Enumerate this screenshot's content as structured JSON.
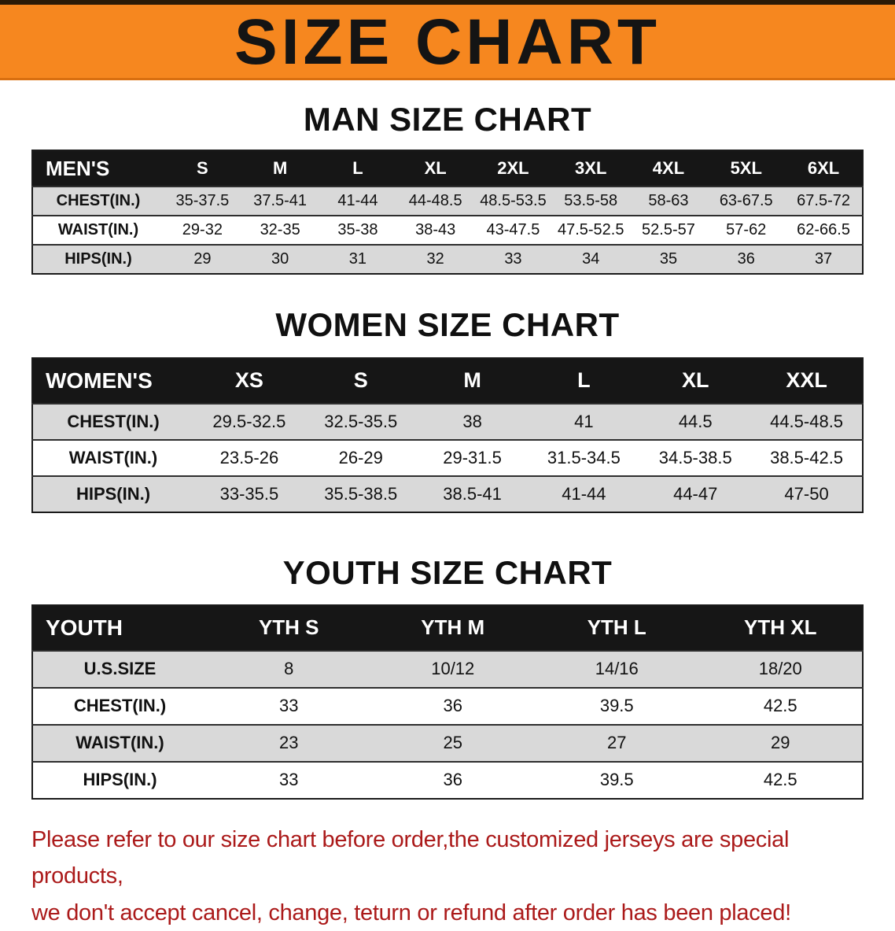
{
  "banner": {
    "title": "SIZE CHART"
  },
  "colors": {
    "banner_bg": "#f6871f",
    "table_header_bg": "#161616",
    "row_alt_gray": "#d9d9d9",
    "note_red": "#ab1a1a"
  },
  "sections": [
    {
      "heading": "MAN SIZE CHART",
      "table": {
        "header_label": "MEN'S",
        "columns": [
          "S",
          "M",
          "L",
          "XL",
          "2XL",
          "3XL",
          "4XL",
          "5XL",
          "6XL"
        ],
        "rows": [
          {
            "label": "CHEST(IN.)",
            "values": [
              "35-37.5",
              "37.5-41",
              "41-44",
              "44-48.5",
              "48.5-53.5",
              "53.5-58",
              "58-63",
              "63-67.5",
              "67.5-72"
            ]
          },
          {
            "label": "WAIST(IN.)",
            "values": [
              "29-32",
              "32-35",
              "35-38",
              "38-43",
              "43-47.5",
              "47.5-52.5",
              "52.5-57",
              "57-62",
              "62-66.5"
            ]
          },
          {
            "label": "HIPS(IN.)",
            "values": [
              "29",
              "30",
              "31",
              "32",
              "33",
              "34",
              "35",
              "36",
              "37"
            ]
          }
        ]
      }
    },
    {
      "heading": "WOMEN SIZE CHART",
      "table": {
        "header_label": "WOMEN'S",
        "columns": [
          "XS",
          "S",
          "M",
          "L",
          "XL",
          "XXL"
        ],
        "rows": [
          {
            "label": "CHEST(IN.)",
            "values": [
              "29.5-32.5",
              "32.5-35.5",
              "38",
              "41",
              "44.5",
              "44.5-48.5"
            ]
          },
          {
            "label": "WAIST(IN.)",
            "values": [
              "23.5-26",
              "26-29",
              "29-31.5",
              "31.5-34.5",
              "34.5-38.5",
              "38.5-42.5"
            ]
          },
          {
            "label": "HIPS(IN.)",
            "values": [
              "33-35.5",
              "35.5-38.5",
              "38.5-41",
              "41-44",
              "44-47",
              "47-50"
            ]
          }
        ]
      }
    },
    {
      "heading": "YOUTH SIZE CHART",
      "table": {
        "header_label": "YOUTH",
        "columns": [
          "YTH S",
          "YTH M",
          "YTH L",
          "YTH XL"
        ],
        "rows": [
          {
            "label": "U.S.SIZE",
            "values": [
              "8",
              "10/12",
              "14/16",
              "18/20"
            ]
          },
          {
            "label": "CHEST(IN.)",
            "values": [
              "33",
              "36",
              "39.5",
              "42.5"
            ]
          },
          {
            "label": "WAIST(IN.)",
            "values": [
              "23",
              "25",
              "27",
              "29"
            ]
          },
          {
            "label": "HIPS(IN.)",
            "values": [
              "33",
              "36",
              "39.5",
              "42.5"
            ]
          }
        ]
      }
    }
  ],
  "footer": {
    "lines": [
      "Please refer to our size chart before order,the customized jerseys are special products,",
      "we don't accept cancel, change, teturn or refund after order has been placed!"
    ]
  }
}
